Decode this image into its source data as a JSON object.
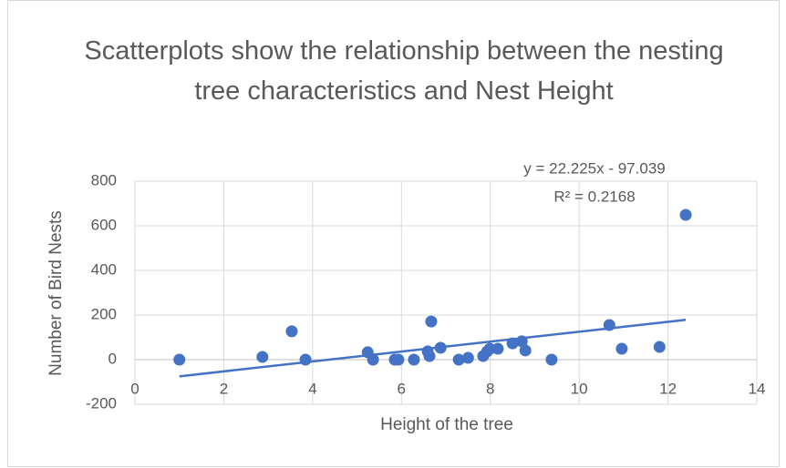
{
  "chart_data": {
    "type": "scatter",
    "title": "Scatterplots show the relationship between the nesting tree characteristics and Nest Height",
    "xlabel": "Height of the tree",
    "ylabel": "Number of Bird Nests",
    "x": [
      1.0,
      2.87,
      3.53,
      3.84,
      5.24,
      5.36,
      5.85,
      5.93,
      6.28,
      6.59,
      6.63,
      6.67,
      6.88,
      7.29,
      7.5,
      7.84,
      7.93,
      7.99,
      8.17,
      8.5,
      8.71,
      8.79,
      9.38,
      10.68,
      10.96,
      11.81,
      12.4
    ],
    "values": [
      0,
      12,
      127,
      0,
      33,
      0,
      0,
      0,
      0,
      37,
      16,
      171,
      53,
      0,
      8,
      16,
      37,
      49,
      49,
      73,
      82,
      41,
      0,
      155,
      49,
      57,
      649
    ],
    "color": "#4472c4",
    "xlim": [
      0,
      14
    ],
    "xticks": [
      0,
      2,
      4,
      6,
      8,
      10,
      12,
      14
    ],
    "ylim": [
      -200,
      800
    ],
    "yticks": [
      -200,
      0,
      200,
      400,
      600,
      800
    ],
    "grid": true,
    "trendline": {
      "slope": 22.225,
      "intercept": -97.039,
      "equation": "y = 22.225x - 97.039",
      "r_squared": "R² = 0.2168"
    }
  }
}
